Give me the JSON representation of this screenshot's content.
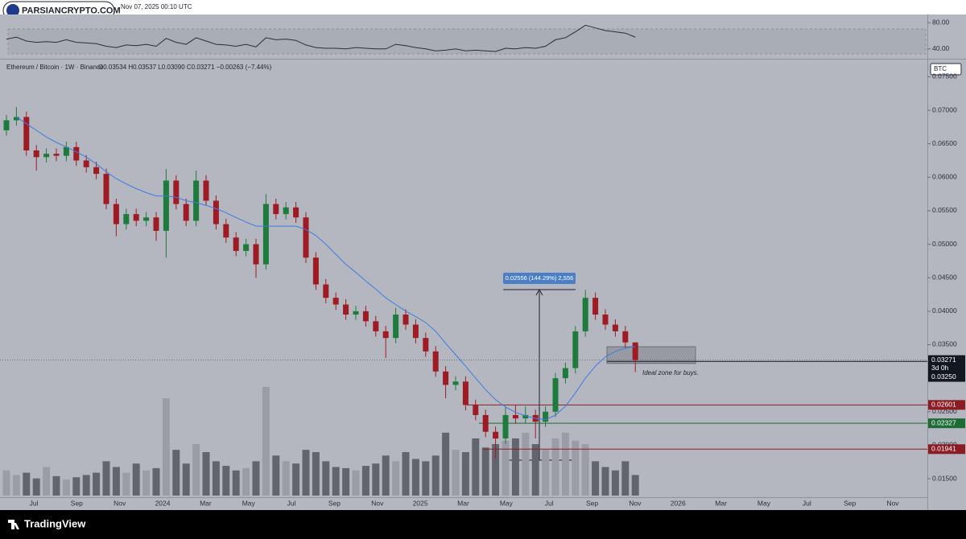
{
  "header": {
    "datetime": "Nov 07, 2025 00:10 UTC",
    "watermark": "PARSIANCRYPTO.COM",
    "brand": "TradingView"
  },
  "chart_data": {
    "type": "candlestick",
    "title": "Ethereum / Bitcoin · 1W · Binance",
    "ohlc_text": "O0.03534 H0.03537 L0.03090 C0.03271 −0.00263 (−7.44%)",
    "currency": "BTC",
    "x_labels": [
      "Jul",
      "Sep",
      "Nov",
      "2024",
      "Mar",
      "May",
      "Jul",
      "Sep",
      "Nov",
      "2025",
      "Mar",
      "May",
      "Jul",
      "Sep",
      "Nov",
      "2026",
      "Mar",
      "May",
      "Jul",
      "Sep",
      "Nov"
    ],
    "open": [
      0.067,
      0.0685,
      0.069,
      0.064,
      0.063,
      0.0635,
      0.0632,
      0.0645,
      0.0625,
      0.0615,
      0.0605,
      0.056,
      0.053,
      0.0545,
      0.0535,
      0.054,
      0.052,
      0.0595,
      0.056,
      0.0535,
      0.0595,
      0.0565,
      0.053,
      0.051,
      0.049,
      0.05,
      0.047,
      0.056,
      0.0545,
      0.0555,
      0.054,
      0.048,
      0.044,
      0.042,
      0.041,
      0.0395,
      0.04,
      0.0385,
      0.037,
      0.036,
      0.0395,
      0.038,
      0.036,
      0.034,
      0.031,
      0.029,
      0.0295,
      0.026,
      0.0245,
      0.022,
      0.021,
      0.0245,
      0.024,
      0.0245,
      0.0235,
      0.025,
      0.03,
      0.0315,
      0.037,
      0.042,
      0.0395,
      0.038,
      0.037,
      0.03534
    ],
    "high": [
      0.0693,
      0.0705,
      0.0698,
      0.0648,
      0.0643,
      0.0643,
      0.0653,
      0.0653,
      0.0633,
      0.0623,
      0.0613,
      0.0568,
      0.0553,
      0.0553,
      0.0548,
      0.0548,
      0.0612,
      0.0603,
      0.0568,
      0.061,
      0.0603,
      0.0573,
      0.0538,
      0.0518,
      0.0508,
      0.0508,
      0.0575,
      0.0568,
      0.0563,
      0.0563,
      0.0548,
      0.0488,
      0.0448,
      0.0428,
      0.0418,
      0.0408,
      0.0408,
      0.0393,
      0.0378,
      0.0405,
      0.0403,
      0.0388,
      0.0368,
      0.0348,
      0.0318,
      0.0303,
      0.0303,
      0.0268,
      0.0253,
      0.0228,
      0.0258,
      0.026,
      0.0258,
      0.0253,
      0.0258,
      0.0308,
      0.0323,
      0.0378,
      0.0432,
      0.0428,
      0.0403,
      0.0388,
      0.0378,
      0.03537
    ],
    "low": [
      0.0662,
      0.0677,
      0.0632,
      0.061,
      0.0622,
      0.0624,
      0.0624,
      0.0617,
      0.0607,
      0.0597,
      0.0552,
      0.0512,
      0.0522,
      0.0527,
      0.0527,
      0.0505,
      0.048,
      0.0552,
      0.0527,
      0.0527,
      0.0557,
      0.0522,
      0.0502,
      0.0482,
      0.0482,
      0.045,
      0.0462,
      0.0537,
      0.0537,
      0.0532,
      0.0472,
      0.0432,
      0.0412,
      0.0402,
      0.0387,
      0.0387,
      0.0377,
      0.0362,
      0.033,
      0.0352,
      0.0372,
      0.0352,
      0.0332,
      0.0302,
      0.027,
      0.0282,
      0.0252,
      0.0237,
      0.0212,
      0.018,
      0.0202,
      0.0232,
      0.0232,
      0.021,
      0.0227,
      0.0242,
      0.0292,
      0.0307,
      0.0362,
      0.0387,
      0.0372,
      0.0362,
      0.0345,
      0.0309
    ],
    "close": [
      0.0685,
      0.069,
      0.064,
      0.063,
      0.0635,
      0.0632,
      0.0645,
      0.0625,
      0.0615,
      0.0605,
      0.056,
      0.053,
      0.0545,
      0.0535,
      0.054,
      0.052,
      0.0595,
      0.056,
      0.0535,
      0.0595,
      0.0565,
      0.053,
      0.051,
      0.049,
      0.05,
      0.047,
      0.056,
      0.0545,
      0.0555,
      0.054,
      0.048,
      0.044,
      0.042,
      0.041,
      0.0395,
      0.04,
      0.0385,
      0.037,
      0.036,
      0.0395,
      0.038,
      0.036,
      0.034,
      0.031,
      0.029,
      0.0295,
      0.026,
      0.0245,
      0.022,
      0.021,
      0.0245,
      0.024,
      0.0245,
      0.0235,
      0.025,
      0.03,
      0.0315,
      0.037,
      0.042,
      0.0395,
      0.038,
      0.037,
      0.03534,
      0.03271
    ],
    "up_color": "#1e7b3c",
    "down_color": "#9e1b24",
    "volume": [
      22,
      18,
      20,
      15,
      25,
      17,
      14,
      16,
      18,
      20,
      30,
      25,
      20,
      28,
      22,
      24,
      85,
      40,
      28,
      45,
      38,
      30,
      26,
      22,
      24,
      30,
      95,
      35,
      30,
      28,
      40,
      38,
      30,
      25,
      24,
      22,
      26,
      28,
      35,
      30,
      38,
      32,
      30,
      35,
      55,
      40,
      38,
      50,
      42,
      45,
      48,
      50,
      55,
      45,
      40,
      50,
      55,
      48,
      45,
      30,
      25,
      22,
      30,
      18
    ],
    "ma": {
      "color": "#3d7be0",
      "values": [
        null,
        0.069,
        0.068,
        0.067,
        0.066,
        0.0652,
        0.0645,
        0.0638,
        0.063,
        0.062,
        0.0608,
        0.0598,
        0.059,
        0.0583,
        0.0577,
        0.0572,
        0.0572,
        0.057,
        0.0565,
        0.0562,
        0.0558,
        0.0553,
        0.0547,
        0.054,
        0.0533,
        0.0527,
        0.0527,
        0.0527,
        0.0527,
        0.0527,
        0.0522,
        0.0513,
        0.05,
        0.0485,
        0.047,
        0.0458,
        0.0445,
        0.0433,
        0.042,
        0.041,
        0.04,
        0.0392,
        0.0383,
        0.037,
        0.0352,
        0.0335,
        0.0318,
        0.03,
        0.0283,
        0.0268,
        0.0257,
        0.0249,
        0.0244,
        0.024,
        0.0238,
        0.0245,
        0.0258,
        0.0278,
        0.03,
        0.0318,
        0.0332,
        0.034,
        0.0345,
        0.0347
      ]
    },
    "ylim": [
      0.01224,
      0.07709
    ],
    "yticks": [
      {
        "value": 0.015,
        "label": "0.01500"
      },
      {
        "value": 0.02,
        "label": "0.02000"
      },
      {
        "value": 0.025,
        "label": "0.02500"
      },
      {
        "value": 0.03,
        "label": "0.03000"
      },
      {
        "value": 0.035,
        "label": "0.03500"
      },
      {
        "value": 0.04,
        "label": "0.04000"
      },
      {
        "value": 0.045,
        "label": "0.04500"
      },
      {
        "value": 0.05,
        "label": "0.05000"
      },
      {
        "value": 0.055,
        "label": "0.05500"
      },
      {
        "value": 0.06,
        "label": "0.06000"
      },
      {
        "value": 0.065,
        "label": "0.06500"
      },
      {
        "value": 0.07,
        "label": "0.07000"
      },
      {
        "value": 0.075,
        "label": "0.07500"
      }
    ],
    "last_price": 0.03271,
    "countdown": "3d 0h",
    "levels": [
      {
        "value": 0.0325,
        "label": "0.03250",
        "color": "#131722"
      },
      {
        "value": 0.02601,
        "color": "#8b1c24"
      },
      {
        "value": 0.02327,
        "color": "#1f6b35"
      },
      {
        "value": 0.01941,
        "color": "#8b1c24"
      }
    ],
    "zone": {
      "top": 0.0347,
      "bottom": 0.0322,
      "label": "Ideal zone for buys."
    },
    "measure_label": "0.02556 (144.29%) 2,556",
    "rsi": {
      "color": "#2a2e39",
      "values": [
        55,
        58,
        52,
        50,
        51,
        50,
        54,
        50,
        49,
        48,
        44,
        42,
        46,
        45,
        47,
        44,
        56,
        50,
        47,
        57,
        52,
        47,
        46,
        44,
        47,
        43,
        57,
        54,
        55,
        53,
        46,
        42,
        41,
        41,
        40,
        42,
        41,
        40,
        40,
        47,
        45,
        42,
        40,
        37,
        38,
        40,
        37,
        38,
        37,
        36,
        41,
        40,
        42,
        41,
        44,
        54,
        57,
        66,
        76,
        72,
        68,
        66,
        64,
        58
      ],
      "ylim": [
        25,
        92.5
      ],
      "yticks": [
        {
          "value": 80,
          "label": "80.00"
        },
        {
          "value": 40,
          "label": "40.00"
        }
      ]
    }
  }
}
